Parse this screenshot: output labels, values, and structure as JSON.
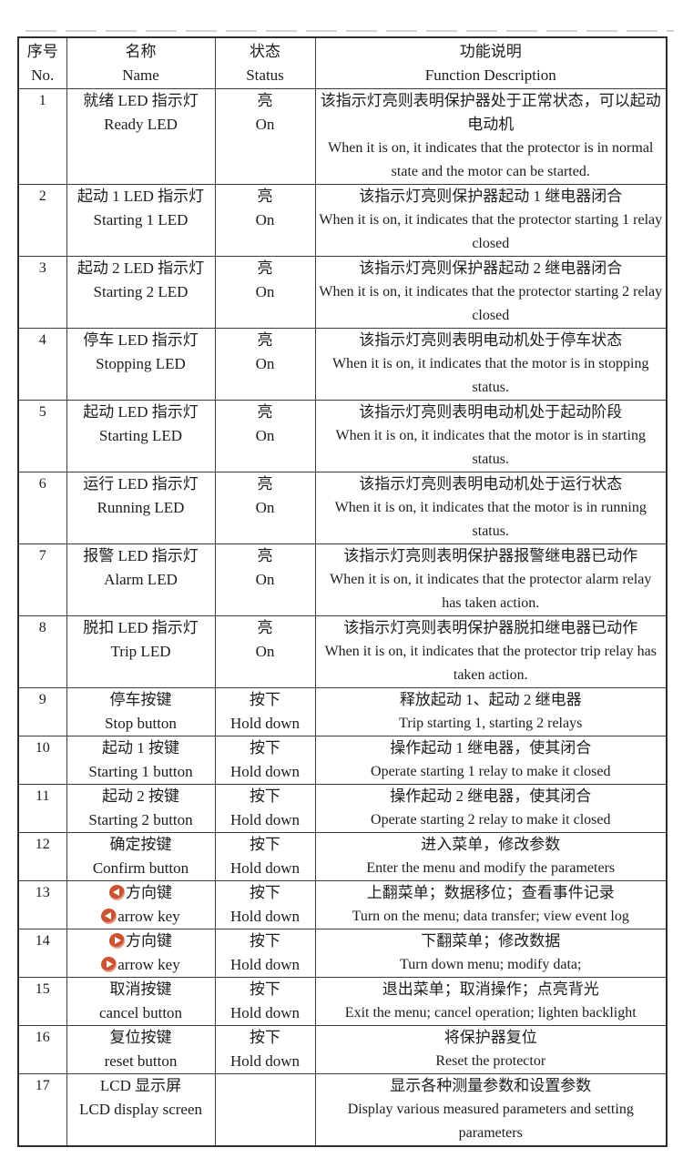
{
  "icon_color": "#cd5230",
  "table": {
    "header": {
      "no_cn": "序号",
      "no_en": "No.",
      "name_cn": "名称",
      "name_en": "Name",
      "status_cn": "状态",
      "status_en": "Status",
      "desc_cn": "功能说明",
      "desc_en": "Function Description"
    },
    "rows": [
      {
        "no": "1",
        "name_cn": "就绪 LED 指示灯",
        "name_en": "Ready LED",
        "status_cn": "亮",
        "status_en": "On",
        "desc_cn": "该指示灯亮则表明保护器处于正常状态，可以起动电动机",
        "desc_en": "When it is on, it indicates that the protector is in normal state and the motor can be started."
      },
      {
        "no": "2",
        "name_cn": "起动 1 LED 指示灯",
        "name_en": "Starting 1 LED",
        "status_cn": "亮",
        "status_en": "On",
        "desc_cn": "该指示灯亮则保护器起动 1 继电器闭合",
        "desc_en": "When it is on, it indicates that the protector starting 1 relay closed"
      },
      {
        "no": "3",
        "name_cn": "起动 2 LED 指示灯",
        "name_en": "Starting 2 LED",
        "status_cn": "亮",
        "status_en": "On",
        "desc_cn": "该指示灯亮则保护器起动 2 继电器闭合",
        "desc_en": "When it is on, it indicates that the protector starting 2 relay closed"
      },
      {
        "no": "4",
        "name_cn": "停车 LED 指示灯",
        "name_en": "Stopping LED",
        "status_cn": "亮",
        "status_en": "On",
        "desc_cn": "该指示灯亮则表明电动机处于停车状态",
        "desc_en": "When it is on, it indicates that the motor is in stopping status."
      },
      {
        "no": "5",
        "name_cn": "起动 LED 指示灯",
        "name_en": "Starting LED",
        "status_cn": "亮",
        "status_en": "On",
        "desc_cn": "该指示灯亮则表明电动机处于起动阶段",
        "desc_en": "When it is on, it indicates that the motor is in starting status."
      },
      {
        "no": "6",
        "name_cn": "运行 LED 指示灯",
        "name_en": "Running LED",
        "status_cn": "亮",
        "status_en": "On",
        "desc_cn": "该指示灯亮则表明电动机处于运行状态",
        "desc_en": "When it is on, it indicates that the motor is in running status."
      },
      {
        "no": "7",
        "name_cn": "报警 LED 指示灯",
        "name_en": "Alarm LED",
        "status_cn": "亮",
        "status_en": "On",
        "desc_cn": "该指示灯亮则表明保护器报警继电器已动作",
        "desc_en": "When it is on, it indicates that the protector alarm relay has taken action."
      },
      {
        "no": "8",
        "name_cn": "脱扣 LED 指示灯",
        "name_en": "Trip LED",
        "status_cn": "亮",
        "status_en": "On",
        "desc_cn": "该指示灯亮则表明保护器脱扣继电器已动作",
        "desc_en": "When it is on, it indicates that the protector trip relay has taken action."
      },
      {
        "no": "9",
        "name_cn": "停车按键",
        "name_en": "Stop button",
        "status_cn": "按下",
        "status_en": "Hold down",
        "desc_cn": "释放起动 1、起动 2 继电器",
        "desc_en": "Trip starting 1, starting 2 relays"
      },
      {
        "no": "10",
        "name_cn": "起动 1 按键",
        "name_en": "Starting 1 button",
        "status_cn": "按下",
        "status_en": "Hold down",
        "desc_cn": "操作起动 1 继电器，使其闭合",
        "desc_en": "Operate starting 1 relay to make it closed"
      },
      {
        "no": "11",
        "name_cn": "起动 2 按键",
        "name_en": "Starting 2 button",
        "status_cn": "按下",
        "status_en": "Hold down",
        "desc_cn": "操作起动 2 继电器，使其闭合",
        "desc_en": "Operate starting 2 relay to make it closed"
      },
      {
        "no": "12",
        "name_cn": "确定按键",
        "name_en": "Confirm button",
        "status_cn": "按下",
        "status_en": "Hold down",
        "desc_cn": "进入菜单，修改参数",
        "desc_en": "Enter the menu and modify the parameters"
      },
      {
        "no": "13",
        "icon": "left-arrow",
        "name_cn": "方向键",
        "name_en": "arrow key",
        "status_cn": "按下",
        "status_en": "Hold down",
        "desc_cn": "上翻菜单；数据移位；查看事件记录",
        "desc_en": "Turn on the menu; data transfer; view event log"
      },
      {
        "no": "14",
        "icon": "right-arrow",
        "name_cn": "方向键",
        "name_en": "arrow key",
        "status_cn": "按下",
        "status_en": "Hold down",
        "desc_cn": "下翻菜单；修改数据",
        "desc_en": "Turn down menu; modify data;"
      },
      {
        "no": "15",
        "name_cn": "取消按键",
        "name_en": "cancel button",
        "status_cn": "按下",
        "status_en": "Hold down",
        "desc_cn": "退出菜单；取消操作；点亮背光",
        "desc_en": "Exit the menu; cancel operation; lighten backlight"
      },
      {
        "no": "16",
        "name_cn": "复位按键",
        "name_en": "reset button",
        "status_cn": "按下",
        "status_en": "Hold down",
        "desc_cn": "将保护器复位",
        "desc_en": "Reset the protector"
      },
      {
        "no": "17",
        "name_cn": "LCD 显示屏",
        "name_en": "LCD display screen",
        "status_cn": "",
        "status_en": "",
        "desc_cn": "显示各种测量参数和设置参数",
        "desc_en": "Display various measured parameters and setting parameters"
      }
    ]
  }
}
